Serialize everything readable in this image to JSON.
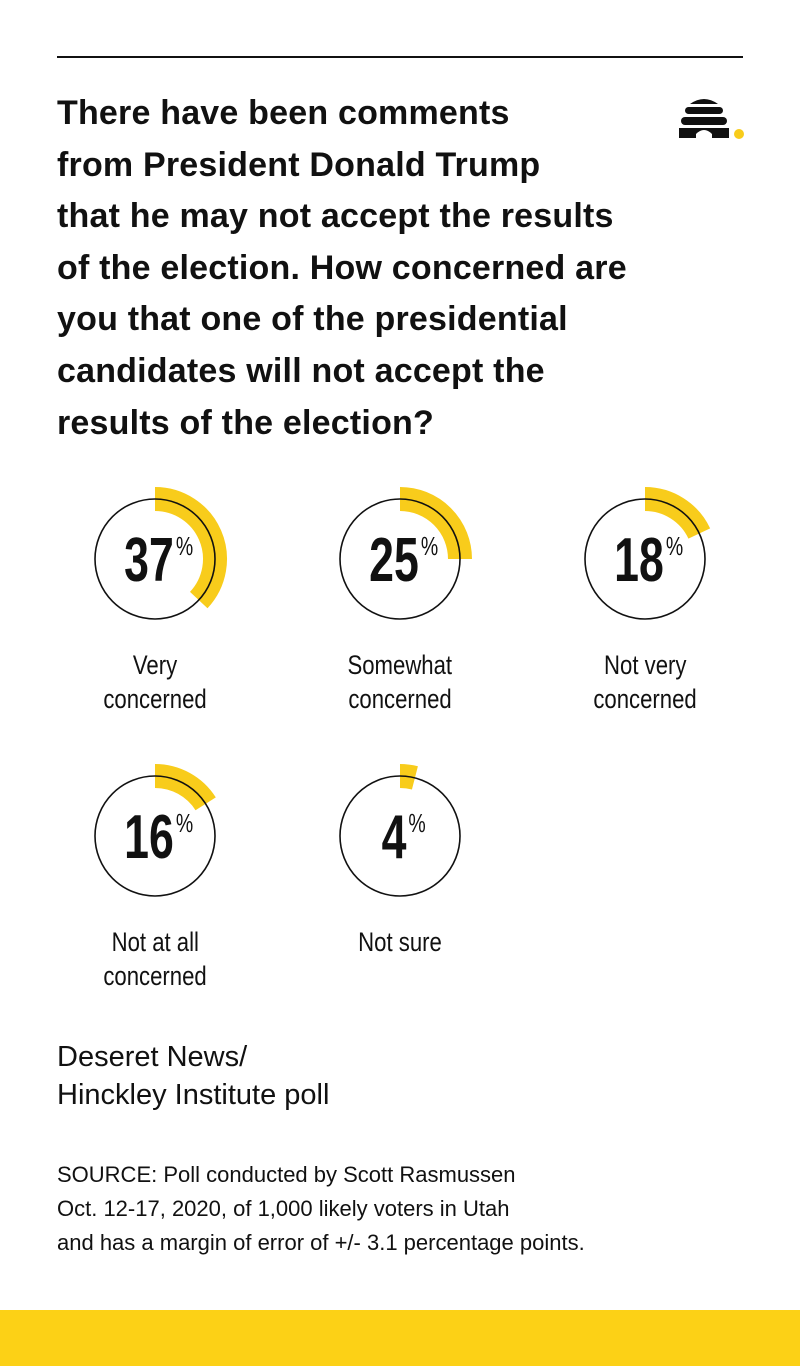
{
  "title": "There have been comments from President Donald Trump that he may not accept the results of the election. How concerned are you that one of the presidential candidates will not accept the results of the election?",
  "title_lines": [
    "There have been comments",
    "from President Donald Trump",
    "that he may not accept the results",
    "of the election. How concerned are",
    "you that one of the presidential",
    "candidates will not accept the",
    "results of the election?"
  ],
  "logo": "Deseret News beehive logo",
  "colors": {
    "accent": "#F8CC1B",
    "footer": "#FCD116",
    "ink": "#111111"
  },
  "chart_data": {
    "type": "donut",
    "unit": "%",
    "items": [
      {
        "label": [
          "Very",
          "concerned"
        ],
        "value": 37
      },
      {
        "label": [
          "Somewhat",
          "concerned"
        ],
        "value": 25
      },
      {
        "label": [
          "Not very",
          "concerned"
        ],
        "value": 18
      },
      {
        "label": [
          "Not at all",
          "concerned"
        ],
        "value": 16
      },
      {
        "label": [
          "Not sure"
        ],
        "value": 4
      }
    ]
  },
  "credit": [
    "Deseret News/",
    "Hinckley Institute poll"
  ],
  "source": [
    "SOURCE: Poll conducted by Scott Rasmussen",
    "Oct. 12-17, 2020, of 1,000 likely voters in Utah",
    "and has a margin of error of +/- 3.1 percentage points."
  ]
}
